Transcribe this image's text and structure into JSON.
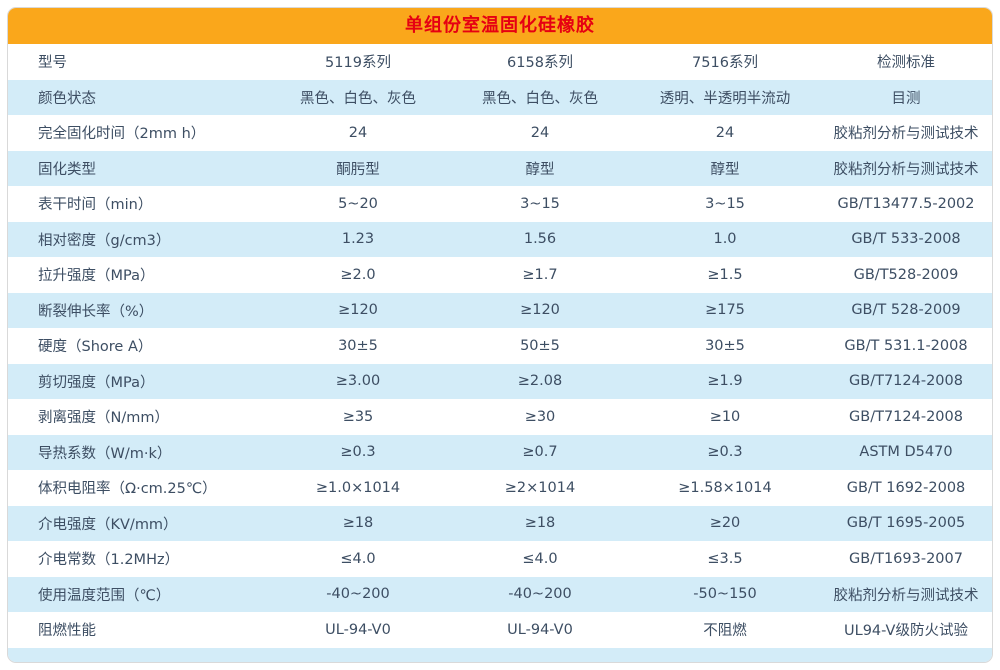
{
  "title": "单组份室温固化硅橡胶",
  "colors": {
    "header_bg": "#FAA71B",
    "header_text": "#E60012",
    "row_alt_bg": "#D3ECF8",
    "body_text": "#3D4E63"
  },
  "table": {
    "columns": [
      "型号",
      "5119系列",
      "6158系列",
      "7516系列",
      "检测标准"
    ],
    "rows": [
      [
        "颜色状态",
        "黑色、白色、灰色",
        "黑色、白色、灰色",
        "透明、半透明半流动",
        "目测"
      ],
      [
        "完全固化时间（2mm h）",
        "24",
        "24",
        "24",
        "胶粘剂分析与测试技术"
      ],
      [
        "固化类型",
        "酮肟型",
        "醇型",
        "醇型",
        "胶粘剂分析与测试技术"
      ],
      [
        "表干时间（min）",
        "5~20",
        "3~15",
        "3~15",
        "GB/T13477.5-2002"
      ],
      [
        "相对密度（g/cm3）",
        "1.23",
        "1.56",
        "1.0",
        "GB/T 533-2008"
      ],
      [
        "拉升强度（MPa）",
        "≥2.0",
        "≥1.7",
        "≥1.5",
        "GB/T528-2009"
      ],
      [
        "断裂伸长率（%）",
        "≥120",
        "≥120",
        "≥175",
        "GB/T 528-2009"
      ],
      [
        "硬度（Shore A）",
        "30±5",
        "50±5",
        "30±5",
        "GB/T 531.1-2008"
      ],
      [
        "剪切强度（MPa）",
        "≥3.00",
        "≥2.08",
        "≥1.9",
        "GB/T7124-2008"
      ],
      [
        "剥离强度（N/mm）",
        "≥35",
        "≥30",
        "≥10",
        "GB/T7124-2008"
      ],
      [
        "导热系数（W/m·k）",
        "≥0.3",
        "≥0.7",
        "≥0.3",
        "ASTM D5470"
      ],
      [
        "体积电阻率（Ω·cm.25℃）",
        "≥1.0×1014",
        "≥2×1014",
        "≥1.58×1014",
        "GB/T 1692-2008"
      ],
      [
        "介电强度（KV/mm）",
        "≥18",
        "≥18",
        "≥20",
        "GB/T 1695-2005"
      ],
      [
        "介电常数（1.2MHz）",
        "≤4.0",
        "≤4.0",
        "≤3.5",
        "GB/T1693-2007"
      ],
      [
        "使用温度范围（℃）",
        "-40~200",
        "-40~200",
        "-50~150",
        "胶粘剂分析与测试技术"
      ],
      [
        "阻燃性能",
        "UL-94-V0",
        "UL-94-V0",
        "不阻燃",
        "UL94-V级防火试验"
      ]
    ]
  }
}
